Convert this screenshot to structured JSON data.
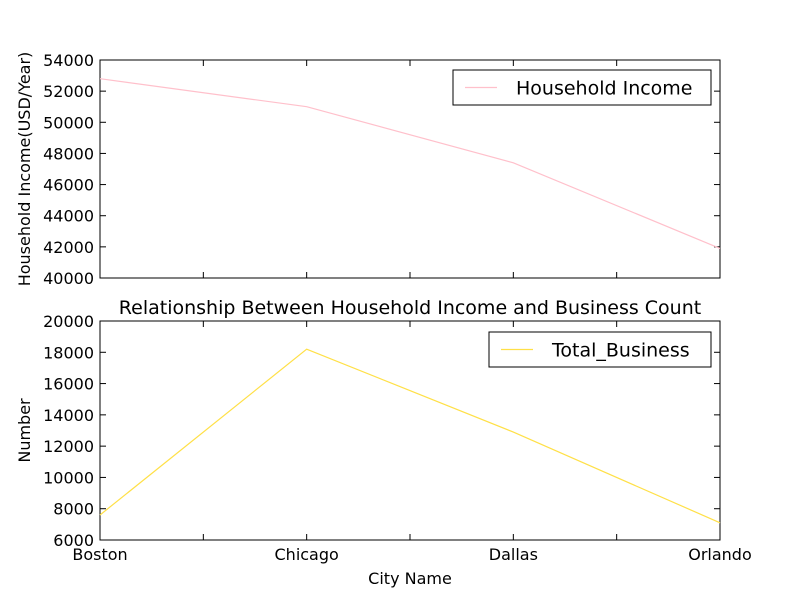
{
  "chart_data": [
    {
      "type": "line",
      "title": "",
      "xlabel": "",
      "ylabel": "Household Income(USD/Year)",
      "categories": [
        "Boston",
        "Chicago",
        "Dallas",
        "Orlando"
      ],
      "ylim": [
        40000,
        54000
      ],
      "yticks": [
        "40000",
        "42000",
        "44000",
        "46000",
        "48000",
        "50000",
        "52000",
        "54000"
      ],
      "legend_position": "top-right",
      "grid": false,
      "series": [
        {
          "name": "Household Income",
          "values": [
            52800,
            51000,
            47400,
            41900
          ],
          "color": "#ffc0cb"
        }
      ]
    },
    {
      "type": "line",
      "title": "Relationship Between Household Income and Business Count",
      "xlabel": "City Name",
      "ylabel": "Number",
      "categories": [
        "Boston",
        "Chicago",
        "Dallas",
        "Orlando"
      ],
      "ylim": [
        6000,
        20000
      ],
      "yticks": [
        "6000",
        "8000",
        "10000",
        "12000",
        "14000",
        "16000",
        "18000",
        "20000"
      ],
      "legend_position": "top-right",
      "grid": false,
      "series": [
        {
          "name": "Total_Business",
          "values": [
            7600,
            18200,
            12900,
            7100
          ],
          "color": "#ffe047"
        }
      ]
    }
  ]
}
